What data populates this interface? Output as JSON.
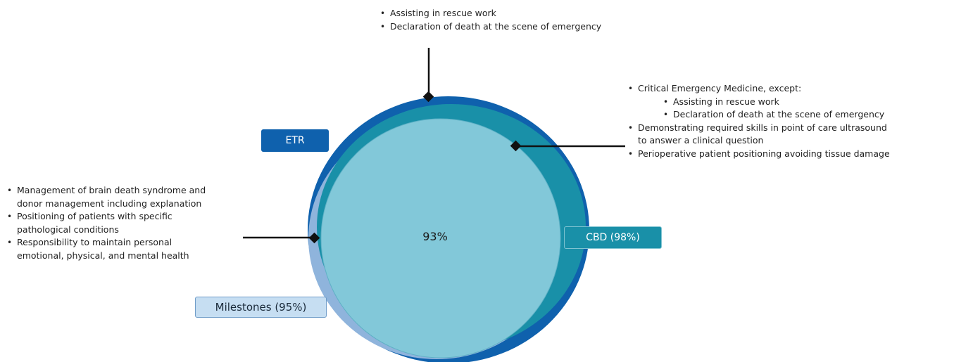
{
  "diagram": {
    "center_value": "93%",
    "labels": {
      "etr": "ETR",
      "cbd": "CBD (98%)",
      "milestones": "Milestones (95%)"
    },
    "colors": {
      "etr": "#0f61ad",
      "cbd": "#1990a8",
      "milestones": "#8fb4dc",
      "overlap": "#82c8d9"
    },
    "top_notes": [
      "Assisting in rescue work",
      "Declaration of death at the scene of emergency"
    ],
    "right_notes": {
      "item1": "Critical Emergency Medicine, except:",
      "item1_sub": [
        "Assisting in rescue work",
        "Declaration of death at the scene of emergency"
      ],
      "item2_line1": "Demonstrating required skills in point of care ultrasound",
      "item2_line2": "to answer a clinical question",
      "item3": "Perioperative patient positioning avoiding tissue damage"
    },
    "left_notes": [
      {
        "line1": "Management of brain death syndrome and",
        "line2": "donor management including explanation"
      },
      {
        "line1": "Positioning of patients with specific",
        "line2": "pathological conditions"
      },
      {
        "line1": "Responsibility to maintain personal",
        "line2": "emotional, physical, and mental health"
      }
    ]
  }
}
